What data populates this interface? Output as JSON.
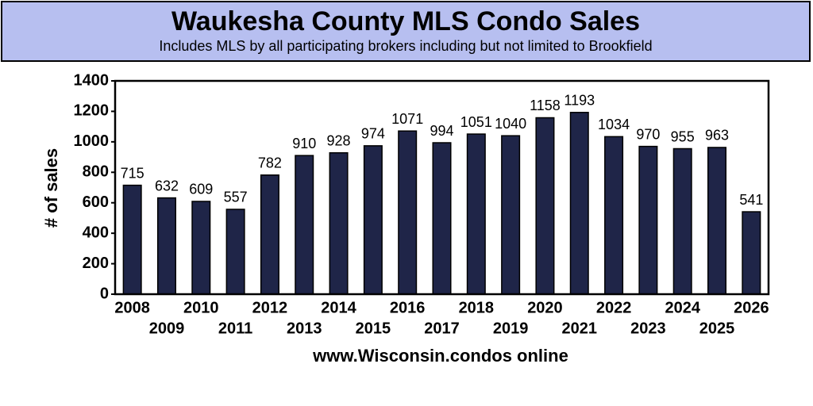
{
  "chart_data": {
    "type": "bar",
    "title": "Waukesha County MLS Condo Sales",
    "subtitle": "Includes MLS by all participating brokers including but not limited to Brookfield",
    "x_label": "www.Wisconsin.condos online",
    "y_label": "# of sales",
    "categories": [
      "2008",
      "2009",
      "2010",
      "2011",
      "2012",
      "2013",
      "2014",
      "2015",
      "2016",
      "2017",
      "2018",
      "2019",
      "2020",
      "2021",
      "2022",
      "2023",
      "2024",
      "2025",
      "2026"
    ],
    "values": [
      715,
      632,
      609,
      557,
      782,
      910,
      928,
      974,
      1071,
      994,
      1051,
      1040,
      1158,
      1193,
      1034,
      970,
      955,
      963,
      541
    ],
    "color": "#1f2548",
    "ylim": [
      0,
      1400
    ],
    "yticks": [
      0,
      200,
      400,
      600,
      800,
      1000,
      1200,
      1400
    ],
    "grid": false
  }
}
